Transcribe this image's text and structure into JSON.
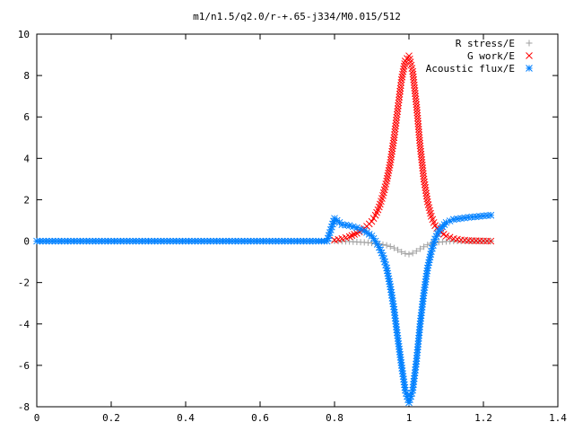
{
  "chart_data": {
    "type": "scatter",
    "title": "m1/n1.5/q2.0/r-+.65-j334/M0.015/512",
    "xlabel": "",
    "ylabel": "",
    "xlim": [
      0,
      1.4
    ],
    "ylim": [
      -8,
      10
    ],
    "xticks": [
      "0",
      "0.2",
      "0.4",
      "0.6",
      "0.8",
      "1",
      "1.2",
      "1.4"
    ],
    "yticks": [
      "10",
      "8",
      "6",
      "4",
      "2",
      "0",
      "-2",
      "-4",
      "-6",
      "-8"
    ],
    "legend_position": "top-right",
    "grid": false,
    "series": [
      {
        "name": "R stress/E",
        "marker": "+",
        "color": "#a0a0a0",
        "x": [
          0.8,
          0.82,
          0.84,
          0.86,
          0.88,
          0.9,
          0.92,
          0.94,
          0.95,
          0.96,
          0.97,
          0.98,
          0.99,
          1.0,
          1.01,
          1.02,
          1.03,
          1.04,
          1.05,
          1.06,
          1.08,
          1.1,
          1.12,
          1.14,
          1.16,
          1.18,
          1.2,
          1.22
        ],
        "y": [
          0.0,
          -0.01,
          -0.02,
          -0.04,
          -0.06,
          -0.09,
          -0.13,
          -0.2,
          -0.26,
          -0.33,
          -0.42,
          -0.52,
          -0.6,
          -0.63,
          -0.58,
          -0.48,
          -0.37,
          -0.27,
          -0.18,
          -0.11,
          -0.05,
          -0.02,
          0.0,
          0.0,
          0.0,
          0.0,
          0.0,
          0.0
        ]
      },
      {
        "name": "G work/E",
        "marker": "x",
        "color": "#ff0000",
        "x": [
          0.8,
          0.82,
          0.84,
          0.86,
          0.88,
          0.9,
          0.91,
          0.92,
          0.93,
          0.94,
          0.95,
          0.96,
          0.97,
          0.98,
          0.99,
          1.0,
          1.01,
          1.02,
          1.03,
          1.04,
          1.05,
          1.06,
          1.07,
          1.08,
          1.1,
          1.12,
          1.14,
          1.16,
          1.18,
          1.2,
          1.22
        ],
        "y": [
          0.05,
          0.12,
          0.22,
          0.38,
          0.6,
          0.95,
          1.25,
          1.65,
          2.2,
          2.9,
          3.8,
          5.0,
          6.4,
          7.8,
          8.7,
          8.95,
          8.2,
          6.6,
          4.6,
          3.0,
          1.9,
          1.2,
          0.75,
          0.5,
          0.25,
          0.12,
          0.06,
          0.03,
          0.02,
          0.01,
          0.0
        ]
      },
      {
        "name": "Acoustic flux/E",
        "marker": "*",
        "color": "#0080ff",
        "x": [
          0.0,
          0.05,
          0.1,
          0.15,
          0.2,
          0.25,
          0.3,
          0.35,
          0.4,
          0.45,
          0.5,
          0.55,
          0.6,
          0.65,
          0.7,
          0.75,
          0.78,
          0.8,
          0.82,
          0.84,
          0.86,
          0.88,
          0.9,
          0.91,
          0.92,
          0.93,
          0.94,
          0.95,
          0.96,
          0.97,
          0.98,
          0.99,
          1.0,
          1.01,
          1.02,
          1.03,
          1.04,
          1.05,
          1.06,
          1.07,
          1.08,
          1.1,
          1.12,
          1.14,
          1.16,
          1.18,
          1.2,
          1.22
        ],
        "y": [
          0.0,
          0.0,
          0.0,
          0.0,
          0.0,
          0.0,
          0.0,
          0.0,
          0.0,
          0.0,
          0.0,
          0.0,
          0.0,
          0.0,
          0.0,
          0.0,
          0.0,
          1.1,
          0.8,
          0.75,
          0.65,
          0.5,
          0.25,
          0.0,
          -0.3,
          -0.7,
          -1.3,
          -2.2,
          -3.3,
          -4.7,
          -6.0,
          -7.2,
          -7.8,
          -7.2,
          -5.8,
          -4.0,
          -2.5,
          -1.3,
          -0.5,
          0.1,
          0.5,
          0.9,
          1.05,
          1.1,
          1.15,
          1.18,
          1.22,
          1.25
        ]
      }
    ]
  }
}
